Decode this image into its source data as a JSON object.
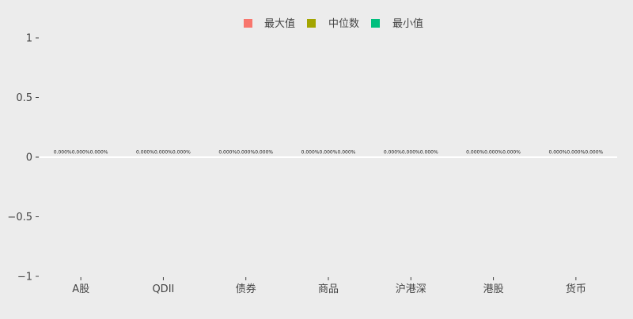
{
  "chart_data": {
    "type": "bar",
    "categories": [
      "A股",
      "QDII",
      "债券",
      "商品",
      "沪港深",
      "港股",
      "货币"
    ],
    "series": [
      {
        "name": "最大值",
        "color": "#f8766d",
        "values": [
          0,
          0,
          0,
          0,
          0,
          0,
          0
        ]
      },
      {
        "name": "中位数",
        "color": "#a3a500",
        "values": [
          0,
          0,
          0,
          0,
          0,
          0,
          0
        ]
      },
      {
        "name": "最小值",
        "color": "#00bf7d",
        "values": [
          0,
          0,
          0,
          0,
          0,
          0,
          0
        ]
      }
    ],
    "data_labels": [
      "0.000%",
      "0.000%",
      "0.000%"
    ],
    "yticks": [
      "1",
      "0.5",
      "0",
      "−0.5",
      "−1"
    ],
    "ylim": [
      -1,
      1
    ],
    "legend_position": "top-center",
    "background": "#ececec",
    "zero_line_color": "#ffffff",
    "title": "",
    "xlabel": "",
    "ylabel": ""
  }
}
